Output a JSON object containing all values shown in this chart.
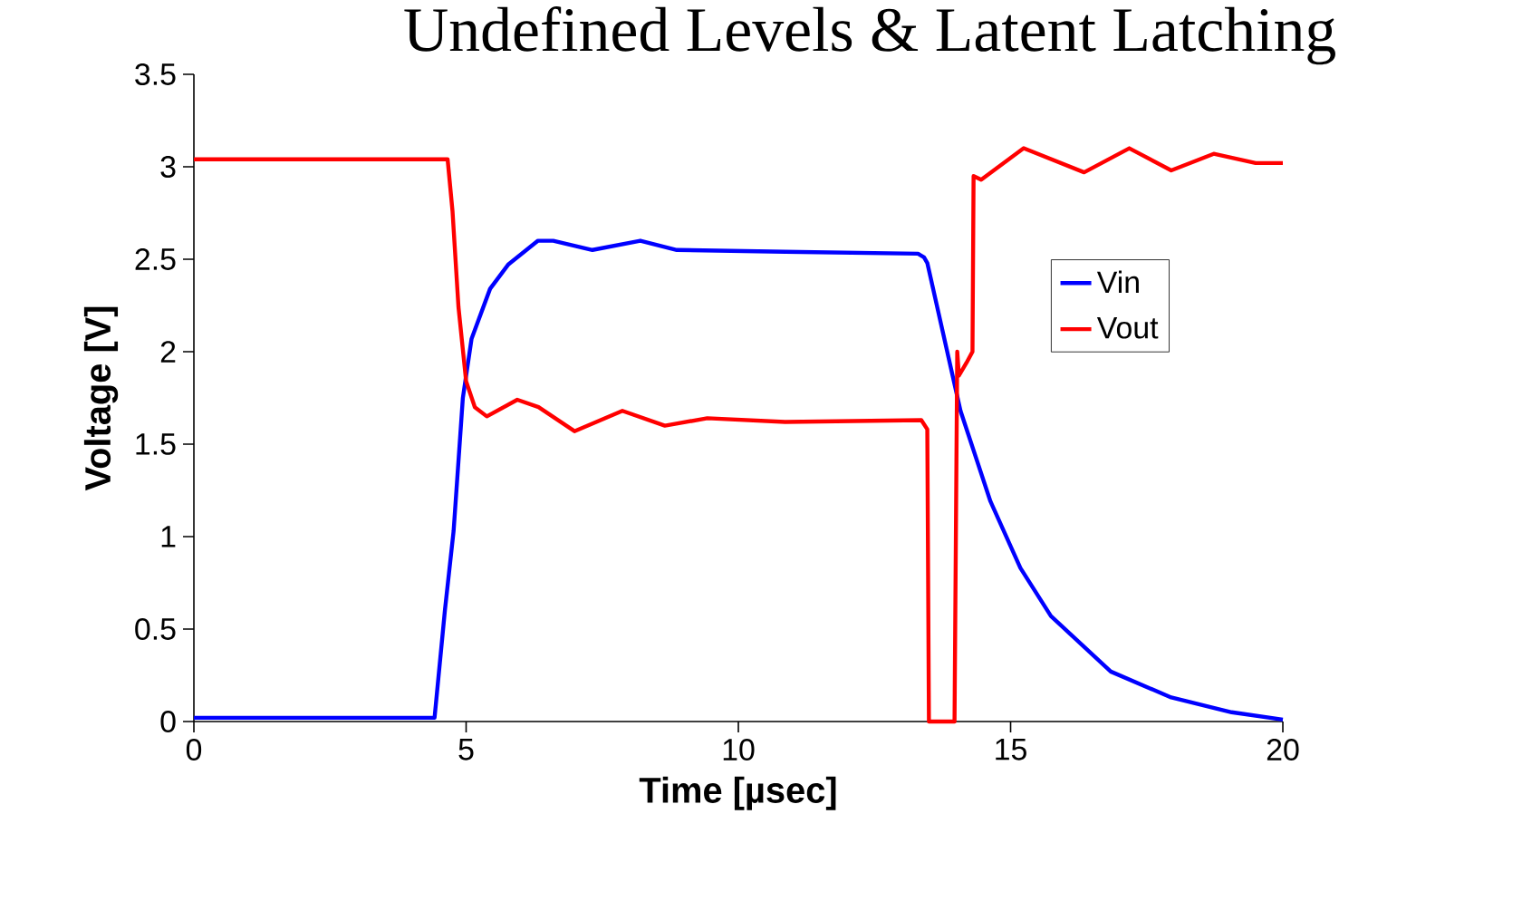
{
  "chart_data": {
    "type": "line",
    "title": "Undefined Levels & Latent Latching",
    "xlabel": "Time [µsec]",
    "ylabel": "Voltage [V]",
    "xlim": [
      0,
      20
    ],
    "ylim": [
      0,
      3.5
    ],
    "xticks": [
      0,
      5,
      10,
      15,
      20
    ],
    "yticks": [
      0,
      0.5,
      1,
      1.5,
      2,
      2.5,
      3,
      3.5
    ],
    "grid": false,
    "legend": "right",
    "marker": "none",
    "line_style": "solid",
    "series": [
      {
        "name": "Vin",
        "color": "#0000ff",
        "x": [
          0,
          4.42,
          4.61,
          4.77,
          4.94,
          5.1,
          5.44,
          5.77,
          6.32,
          6.6,
          7.32,
          8.2,
          8.87,
          10.86,
          13.3,
          13.41,
          13.47,
          14.08,
          14.63,
          15.18,
          15.74,
          16.84,
          17.95,
          19.06,
          20
        ],
        "values": [
          0.02,
          0.02,
          0.6,
          1.03,
          1.75,
          2.07,
          2.34,
          2.47,
          2.6,
          2.6,
          2.55,
          2.6,
          2.55,
          2.54,
          2.53,
          2.51,
          2.48,
          1.68,
          1.19,
          0.83,
          0.57,
          0.27,
          0.13,
          0.05,
          0.01
        ]
      },
      {
        "name": "Vout",
        "color": "#ff0000",
        "x": [
          0,
          4.66,
          4.75,
          4.86,
          5.0,
          5.16,
          5.38,
          5.94,
          6.33,
          6.99,
          7.87,
          8.65,
          9.43,
          10.86,
          13.36,
          13.47,
          13.5,
          13.97,
          14.02,
          14.05,
          14.19,
          14.3,
          14.32,
          14.46,
          15.24,
          16.35,
          17.18,
          17.95,
          18.73,
          19.5,
          20
        ],
        "values": [
          3.04,
          3.04,
          2.76,
          2.24,
          1.84,
          1.7,
          1.65,
          1.74,
          1.7,
          1.57,
          1.68,
          1.6,
          1.64,
          1.62,
          1.63,
          1.58,
          0,
          0,
          2.0,
          1.87,
          1.94,
          2.0,
          2.95,
          2.93,
          3.1,
          2.97,
          3.1,
          2.98,
          3.07,
          3.02,
          3.02
        ]
      }
    ]
  }
}
